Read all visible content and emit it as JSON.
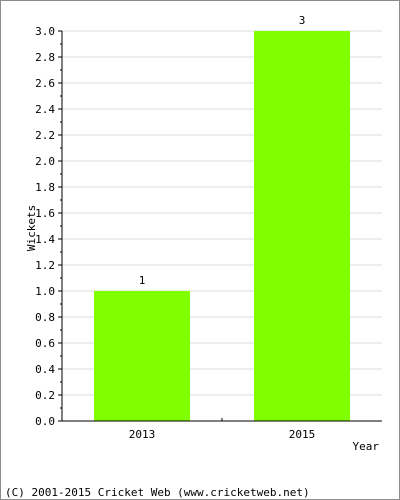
{
  "chart_data": {
    "type": "bar",
    "title": "",
    "xlabel": "Year",
    "ylabel": "Wickets",
    "categories": [
      "2013",
      "2015"
    ],
    "values": [
      1,
      3
    ],
    "data_labels": [
      "1",
      "3"
    ],
    "ylim": [
      0,
      3.0
    ],
    "yticks": [
      "0.0",
      "0.2",
      "0.4",
      "0.6",
      "0.8",
      "1.0",
      "1.2",
      "1.4",
      "1.6",
      "1.8",
      "2.0",
      "2.2",
      "2.4",
      "2.6",
      "2.8",
      "3.0"
    ],
    "grid": true,
    "bar_color": "#80ff00",
    "grid_color": "#dcdcdc"
  },
  "footer": {
    "copyright": "(C) 2001-2015 Cricket Web (www.cricketweb.net)"
  }
}
